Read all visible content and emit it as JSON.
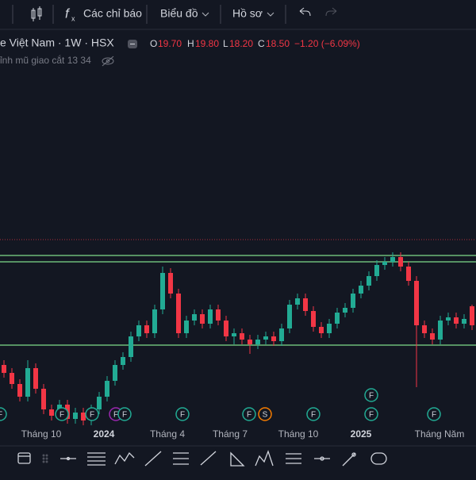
{
  "toolbar": {
    "indicators": "Các chỉ báo",
    "chart": "Biểu đồ",
    "profile": "Hồ sơ"
  },
  "legend": {
    "symbol": "e Việt Nam · 1W · HSX",
    "o_label": "O",
    "o": "19.70",
    "h_label": "H",
    "h": "19.80",
    "l_label": "L",
    "l": "18.20",
    "c_label": "C",
    "c": "18.50",
    "change": "−1.20 (−6.09%)",
    "indicator": "ỉnh mũ giao cắt 13 34"
  },
  "events": [
    "F",
    "F",
    "F",
    "F",
    "F",
    "F",
    "F",
    "S",
    "F",
    "F",
    "F",
    "F"
  ],
  "chart_data": {
    "type": "candlestick",
    "x_labels": [
      "Tháng 10",
      "2024",
      "Tháng 4",
      "Tháng 7",
      "Tháng 10",
      "2025",
      "Tháng Năm"
    ],
    "open": [
      16.0,
      15.5,
      14.8,
      14.0,
      15.8,
      14.5,
      13.2,
      12.8,
      13.5,
      12.6,
      13.0,
      12.5,
      13.2,
      14.0,
      15.0,
      16.0,
      16.5,
      17.8,
      18.5,
      18.0,
      19.5,
      21.8,
      20.5,
      18.0,
      18.8,
      19.2,
      18.6,
      19.5,
      18.8,
      17.8,
      18.0,
      17.6,
      17.3,
      17.6,
      17.8,
      17.5,
      18.3,
      19.8,
      20.2,
      19.4,
      18.4,
      18.0,
      18.6,
      19.3,
      19.6,
      20.5,
      21.0,
      21.6,
      22.3,
      22.5,
      22.8,
      22.2,
      21.3,
      18.5,
      18.0,
      17.6,
      18.8,
      19.0,
      18.6,
      19.7
    ],
    "high": [
      16.3,
      15.8,
      15.1,
      16.3,
      16.1,
      14.8,
      13.5,
      13.8,
      13.8,
      13.3,
      13.3,
      13.5,
      14.3,
      15.3,
      16.3,
      16.8,
      18.1,
      18.8,
      18.8,
      19.8,
      22.2,
      22.1,
      20.8,
      19.1,
      19.5,
      19.5,
      19.8,
      19.8,
      19.1,
      18.3,
      18.3,
      17.9,
      17.9,
      18.1,
      18.1,
      18.6,
      20.1,
      20.5,
      20.5,
      19.7,
      18.7,
      18.9,
      19.6,
      19.9,
      20.8,
      21.3,
      21.9,
      22.6,
      22.8,
      23.1,
      23.1,
      22.5,
      21.6,
      18.8,
      18.3,
      19.1,
      19.3,
      19.3,
      19.2,
      19.8
    ],
    "low": [
      15.2,
      14.5,
      13.7,
      13.7,
      14.2,
      12.9,
      12.5,
      12.5,
      12.3,
      12.3,
      12.2,
      12.2,
      12.9,
      13.7,
      14.7,
      15.7,
      16.2,
      17.5,
      17.7,
      17.7,
      19.2,
      20.2,
      17.7,
      17.7,
      18.5,
      18.3,
      18.3,
      18.5,
      17.5,
      17.3,
      17.3,
      16.7,
      17.0,
      17.3,
      17.2,
      17.2,
      18.0,
      19.5,
      19.1,
      18.1,
      17.7,
      17.7,
      18.3,
      19.0,
      19.3,
      20.2,
      20.7,
      21.3,
      22.0,
      22.2,
      21.9,
      21.0,
      14.6,
      17.7,
      17.3,
      17.3,
      18.5,
      18.3,
      18.3,
      18.2
    ],
    "close": [
      15.5,
      14.8,
      14.0,
      15.8,
      14.5,
      13.2,
      12.8,
      13.5,
      12.6,
      13.0,
      12.5,
      13.2,
      14.0,
      15.0,
      16.0,
      16.5,
      17.8,
      18.5,
      18.0,
      19.5,
      21.8,
      20.5,
      18.0,
      18.8,
      19.2,
      18.6,
      19.5,
      18.8,
      17.8,
      18.0,
      17.6,
      17.3,
      17.6,
      17.8,
      17.5,
      18.3,
      19.8,
      20.2,
      19.4,
      18.4,
      18.0,
      18.6,
      19.3,
      19.6,
      20.5,
      21.0,
      21.6,
      22.3,
      22.5,
      22.8,
      22.2,
      21.3,
      18.5,
      18.0,
      17.6,
      18.8,
      19.0,
      18.6,
      18.9,
      18.5
    ],
    "ylim": [
      12,
      34.5
    ],
    "levels": [
      22.9,
      22.5,
      17.25
    ],
    "alert_level": 23.9,
    "up_color": "#22ab94",
    "down_color": "#f23645",
    "level_color": "#7fdc8a"
  }
}
